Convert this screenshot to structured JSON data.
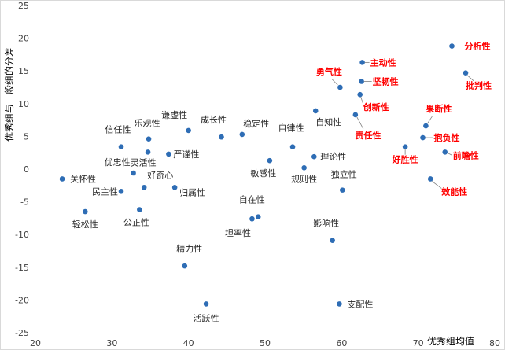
{
  "chart_data": {
    "type": "scatter",
    "xlabel": "优秀组均值",
    "ylabel": "优秀组与一般组的分差",
    "xlim": [
      20,
      80
    ],
    "ylim": [
      -25,
      25
    ],
    "x_ticks": [
      "20",
      "30",
      "40",
      "50",
      "60",
      "70",
      "80"
    ],
    "y_ticks": [
      "25",
      "20",
      "15",
      "10",
      "5",
      "0",
      "-5",
      "-10",
      "-15",
      "-20",
      "-25"
    ],
    "grid": "none",
    "colors": {
      "point": "#2e6db5",
      "normal_label": "#262626",
      "highlight_label": "#ff0000"
    },
    "points": [
      {
        "label": "关怀性",
        "x": 23.5,
        "y": -1.5,
        "highlight": false
      },
      {
        "label": "轻松性",
        "x": 26.5,
        "y": -6.5,
        "highlight": false
      },
      {
        "label": "信任性",
        "x": 31.2,
        "y": 3.4,
        "highlight": false
      },
      {
        "label": "民主性",
        "x": 31.2,
        "y": -3.4,
        "highlight": false
      },
      {
        "label": "优忠性",
        "x": 32.8,
        "y": -0.6,
        "highlight": false
      },
      {
        "label": "公正性",
        "x": 33.6,
        "y": -6.2,
        "highlight": false
      },
      {
        "label": "好奇心",
        "x": 34.2,
        "y": -2.8,
        "highlight": false
      },
      {
        "label": "乐观性",
        "x": 34.8,
        "y": 4.6,
        "highlight": false
      },
      {
        "label": "灵活性",
        "x": 34.7,
        "y": 2.6,
        "highlight": false
      },
      {
        "label": "严谨性",
        "x": 37.4,
        "y": 2.3,
        "highlight": false
      },
      {
        "label": "归属性",
        "x": 38.2,
        "y": -2.8,
        "highlight": false
      },
      {
        "label": "谦虚性",
        "x": 40.0,
        "y": 5.9,
        "highlight": false
      },
      {
        "label": "精力性",
        "x": 39.5,
        "y": -14.8,
        "highlight": false
      },
      {
        "label": "活跃性",
        "x": 42.3,
        "y": -20.6,
        "highlight": false
      },
      {
        "label": "成长性",
        "x": 44.3,
        "y": 4.9,
        "highlight": false
      },
      {
        "label": "稳定性",
        "x": 47.0,
        "y": 5.3,
        "highlight": false
      },
      {
        "label": "坦率性",
        "x": 48.3,
        "y": -7.6,
        "highlight": false
      },
      {
        "label": "自在性",
        "x": 49.1,
        "y": -7.3,
        "highlight": false
      },
      {
        "label": "敏感性",
        "x": 50.6,
        "y": 1.3,
        "highlight": false
      },
      {
        "label": "自律性",
        "x": 53.6,
        "y": 3.4,
        "highlight": false
      },
      {
        "label": "规则性",
        "x": 55.1,
        "y": 0.2,
        "highlight": false
      },
      {
        "label": "理论性",
        "x": 56.4,
        "y": 1.9,
        "highlight": false
      },
      {
        "label": "自知性",
        "x": 56.6,
        "y": 8.9,
        "highlight": false
      },
      {
        "label": "影响性",
        "x": 58.8,
        "y": -10.9,
        "highlight": false
      },
      {
        "label": "支配性",
        "x": 59.7,
        "y": -20.6,
        "highlight": false
      },
      {
        "label": "独立性",
        "x": 60.1,
        "y": -3.2,
        "highlight": false
      },
      {
        "label": "勇气性",
        "x": 59.8,
        "y": 12.5,
        "highlight": true
      },
      {
        "label": "责任性",
        "x": 61.8,
        "y": 8.3,
        "highlight": true
      },
      {
        "label": "主动性",
        "x": 62.7,
        "y": 16.3,
        "highlight": true
      },
      {
        "label": "坚韧性",
        "x": 62.6,
        "y": 13.4,
        "highlight": true
      },
      {
        "label": "创新性",
        "x": 62.4,
        "y": 11.4,
        "highlight": true
      },
      {
        "label": "好胜性",
        "x": 68.3,
        "y": 3.4,
        "highlight": true
      },
      {
        "label": "抱负性",
        "x": 70.6,
        "y": 4.8,
        "highlight": true
      },
      {
        "label": "果断性",
        "x": 71.0,
        "y": 6.6,
        "highlight": true
      },
      {
        "label": "效能性",
        "x": 71.6,
        "y": -1.5,
        "highlight": true
      },
      {
        "label": "前瞻性",
        "x": 73.5,
        "y": 2.6,
        "highlight": true
      },
      {
        "label": "分析性",
        "x": 74.4,
        "y": 18.8,
        "highlight": true
      },
      {
        "label": "批判性",
        "x": 76.2,
        "y": 14.7,
        "highlight": true
      }
    ]
  }
}
